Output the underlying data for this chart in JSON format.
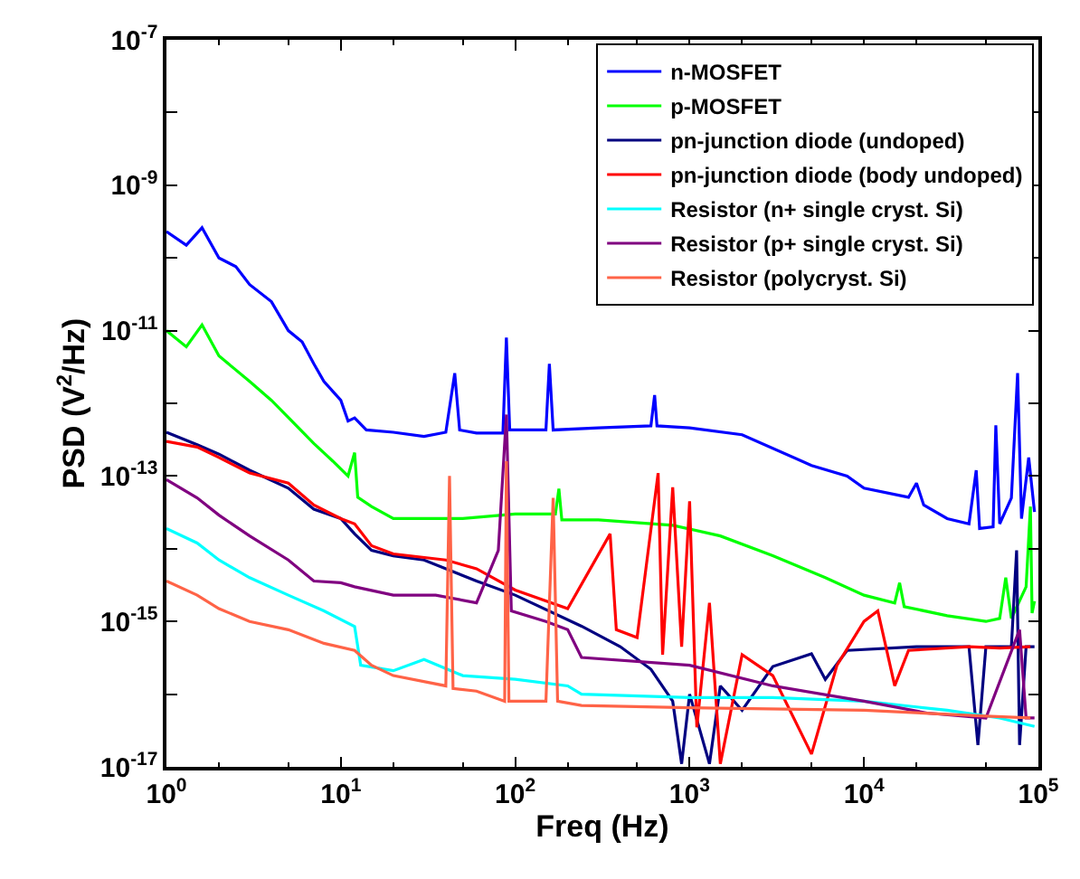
{
  "chart_data": {
    "type": "line",
    "xlabel": "Freq (Hz)",
    "ylabel": "PSD (V$^{2}$/Hz)",
    "log": "xy",
    "legend": "top right",
    "marker": "none",
    "line_style": "solid",
    "xlim": [
      1,
      100000
    ],
    "ylim": [
      1e-17,
      1e-07
    ],
    "xticks": [
      {
        "value": 1,
        "label": "10$^{0}$"
      },
      {
        "value": 10,
        "label": "10$^{1}$"
      },
      {
        "value": 100,
        "label": "10$^{2}$"
      },
      {
        "value": 1000,
        "label": "10$^{3}$"
      },
      {
        "value": 10000,
        "label": "10$^{4}$"
      },
      {
        "value": 100000,
        "label": "10$^{5}$"
      }
    ],
    "yticks": [
      {
        "value": 1e-17,
        "label": "10$^{-17}$"
      },
      {
        "value": 1e-16,
        "label": null
      },
      {
        "value": 1e-15,
        "label": "10$^{-15}$"
      },
      {
        "value": 1e-14,
        "label": null
      },
      {
        "value": 1e-13,
        "label": "10$^{-13}$"
      },
      {
        "value": 1e-12,
        "label": null
      },
      {
        "value": 1e-11,
        "label": "10$^{-11}$"
      },
      {
        "value": 1e-10,
        "label": null
      },
      {
        "value": 1e-09,
        "label": "10$^{-9}$"
      },
      {
        "value": 1e-08,
        "label": null
      },
      {
        "value": 1e-07,
        "label": "10$^{-7}$"
      }
    ],
    "series": [
      {
        "name": "n-MOSFET",
        "color": "#0000ff",
        "x": [
          1,
          1.3,
          1.6,
          2,
          2.5,
          3,
          4,
          5,
          6,
          7,
          8,
          10,
          11,
          12,
          14,
          20,
          30,
          40,
          45,
          48,
          60,
          85,
          89,
          93,
          150,
          157,
          165,
          300,
          600,
          630,
          650,
          1000,
          2000,
          5000,
          8000,
          10000,
          18000,
          20000,
          22000,
          30000,
          40000,
          44000,
          46000,
          55000,
          57000,
          60000,
          70000,
          76000,
          80000,
          88000,
          95000
        ],
        "values": [
          2.3e-10,
          1.5e-10,
          2.6e-10,
          1e-10,
          7.6e-11,
          4.3e-11,
          2.5e-11,
          1e-11,
          7e-12,
          3.5e-12,
          2e-12,
          1.1e-12,
          5.7e-13,
          6.3e-13,
          4.3e-13,
          4e-13,
          3.5e-13,
          4e-13,
          2.6e-12,
          4.3e-13,
          3.9e-13,
          3.9e-13,
          8e-12,
          4.3e-13,
          4.3e-13,
          3.5e-12,
          4.3e-13,
          4.6e-13,
          4.9e-13,
          1.3e-12,
          4.9e-13,
          4.6e-13,
          3.7e-13,
          1.4e-13,
          1e-13,
          6.8e-14,
          5.1e-14,
          8e-14,
          4e-14,
          2.6e-14,
          2.2e-14,
          1.2e-13,
          1.9e-14,
          2e-14,
          5e-13,
          2.2e-14,
          5e-14,
          2.6e-12,
          2.6e-14,
          1.8e-13,
          3.2e-14
        ]
      },
      {
        "name": "p-MOSFET",
        "color": "#00ff00",
        "x": [
          1,
          1.3,
          1.6,
          2,
          3,
          4,
          5,
          7,
          9,
          11,
          12,
          12.5,
          15,
          20,
          50,
          100,
          170,
          178,
          185,
          300,
          800,
          1500,
          3000,
          6000,
          10000,
          15000,
          16000,
          17000,
          30000,
          50000,
          60000,
          65000,
          70000,
          85000,
          90000,
          92000,
          95000
        ],
        "values": [
          1e-11,
          6e-12,
          1.2e-11,
          4.5e-12,
          2e-12,
          1.1e-12,
          6.4e-13,
          2.8e-13,
          1.6e-13,
          1e-13,
          2.1e-13,
          5.1e-14,
          3.8e-14,
          2.6e-14,
          2.6e-14,
          3e-14,
          3e-14,
          6.7e-14,
          2.5e-14,
          2.5e-14,
          2.1e-14,
          1.5e-14,
          8e-15,
          4e-15,
          2.3e-15,
          1.8e-15,
          3.4e-15,
          1.6e-15,
          1.2e-15,
          1e-15,
          1.1e-15,
          4e-15,
          1.1e-15,
          3e-15,
          3.8e-14,
          1.3e-15,
          1.9e-15
        ]
      },
      {
        "name": "pn-junction diode (undoped)",
        "color": "#000080",
        "x": [
          1,
          1.5,
          2,
          3,
          5,
          7,
          10,
          12,
          15,
          20,
          30,
          60,
          100,
          240,
          400,
          600,
          800,
          900,
          1000,
          1300,
          1500,
          2000,
          3000,
          5000,
          6000,
          8000,
          20000,
          40000,
          45000,
          50000,
          70000,
          75000,
          78000,
          85000,
          95000
        ],
        "values": [
          4e-13,
          2.7e-13,
          2e-13,
          1.2e-13,
          6.8e-14,
          3.5e-14,
          2.6e-14,
          1.6e-14,
          9.5e-15,
          8e-15,
          7e-15,
          3.6e-15,
          2.3e-15,
          8.6e-16,
          4.5e-16,
          2.2e-16,
          8e-17,
          1.1e-17,
          1e-16,
          1.1e-17,
          1.3e-16,
          6e-17,
          2.4e-16,
          3.6e-16,
          1.6e-16,
          4e-16,
          4.5e-16,
          4.5e-16,
          2e-17,
          4.5e-16,
          4.5e-16,
          9.5e-15,
          2e-17,
          4.5e-16,
          4.5e-16
        ]
      },
      {
        "name": "pn-junction diode (body undoped)",
        "color": "#ff0000",
        "x": [
          1,
          1.5,
          2,
          3,
          5,
          7,
          10,
          12,
          15,
          20,
          40,
          60,
          100,
          200,
          350,
          380,
          500,
          660,
          700,
          800,
          900,
          1000,
          1100,
          1300,
          1500,
          2000,
          3000,
          5000,
          7000,
          10000,
          12000,
          15000,
          18000,
          40000,
          60000,
          90000
        ],
        "values": [
          3e-13,
          2.5e-13,
          1.8e-13,
          1.1e-13,
          8e-14,
          4e-14,
          2.6e-14,
          2.2e-14,
          1.1e-14,
          8.5e-15,
          7e-15,
          5.3e-15,
          2.7e-15,
          1.5e-15,
          1.6e-14,
          7.7e-16,
          6e-16,
          1.1e-13,
          3.5e-16,
          7e-14,
          4.5e-16,
          4.5e-14,
          3.5e-17,
          1.8e-15,
          1.1e-17,
          3.5e-16,
          1.8e-16,
          1.5e-17,
          2.5e-16,
          1e-15,
          1.4e-15,
          1.3e-16,
          4e-16,
          4.5e-16,
          4.3e-16,
          4.5e-16
        ]
      },
      {
        "name": "Resistor (n+ single cryst. Si)",
        "color": "#00ffff",
        "x": [
          1,
          1.5,
          2,
          3,
          5,
          8,
          12,
          13,
          20,
          30,
          50,
          100,
          200,
          240,
          1000,
          3000,
          10000,
          30000,
          60000,
          95000
        ],
        "values": [
          1.9e-14,
          1.2e-14,
          7e-15,
          4e-15,
          2.3e-15,
          1.4e-15,
          8.5e-16,
          2.5e-16,
          2.1e-16,
          3e-16,
          1.8e-16,
          1.6e-16,
          1.3e-16,
          1e-16,
          9e-17,
          9e-17,
          8e-17,
          6e-17,
          4.7e-17,
          3.6e-17
        ]
      },
      {
        "name": "Resistor (p+ single cryst. Si)",
        "color": "#800080",
        "x": [
          1,
          1.5,
          2,
          3,
          5,
          7,
          10,
          12,
          20,
          35,
          60,
          80,
          89,
          95,
          150,
          200,
          240,
          1000,
          3000,
          10000,
          23000,
          50000,
          78000,
          85000,
          95000
        ],
        "values": [
          8.9e-14,
          5e-14,
          2.9e-14,
          1.5e-14,
          7e-15,
          3.6e-15,
          3.4e-15,
          3e-15,
          2.3e-15,
          2.3e-15,
          1.8e-15,
          9.5e-15,
          7e-13,
          1.4e-15,
          1e-15,
          7.7e-16,
          3.2e-16,
          2.5e-16,
          1.3e-16,
          8e-17,
          5.5e-17,
          4.7e-17,
          7.7e-16,
          4.7e-17,
          4.7e-17
        ]
      },
      {
        "name": "Resistor (polycryst. Si)",
        "color": "#ff6347",
        "x": [
          1,
          1.5,
          2,
          3,
          5,
          8,
          12,
          15,
          20,
          40,
          42,
          44,
          60,
          87,
          89,
          92,
          150,
          165,
          175,
          240,
          1000,
          10000,
          50000,
          90000
        ],
        "values": [
          3.6e-15,
          2.3e-15,
          1.5e-15,
          1e-15,
          7.7e-16,
          5e-16,
          4e-16,
          2.5e-16,
          1.8e-16,
          1.3e-16,
          1e-13,
          1.2e-16,
          1.1e-16,
          8e-17,
          1.6e-13,
          8e-17,
          8e-17,
          5e-14,
          8e-17,
          7e-17,
          6.5e-17,
          6e-17,
          5e-17,
          4.7e-17
        ]
      }
    ]
  }
}
